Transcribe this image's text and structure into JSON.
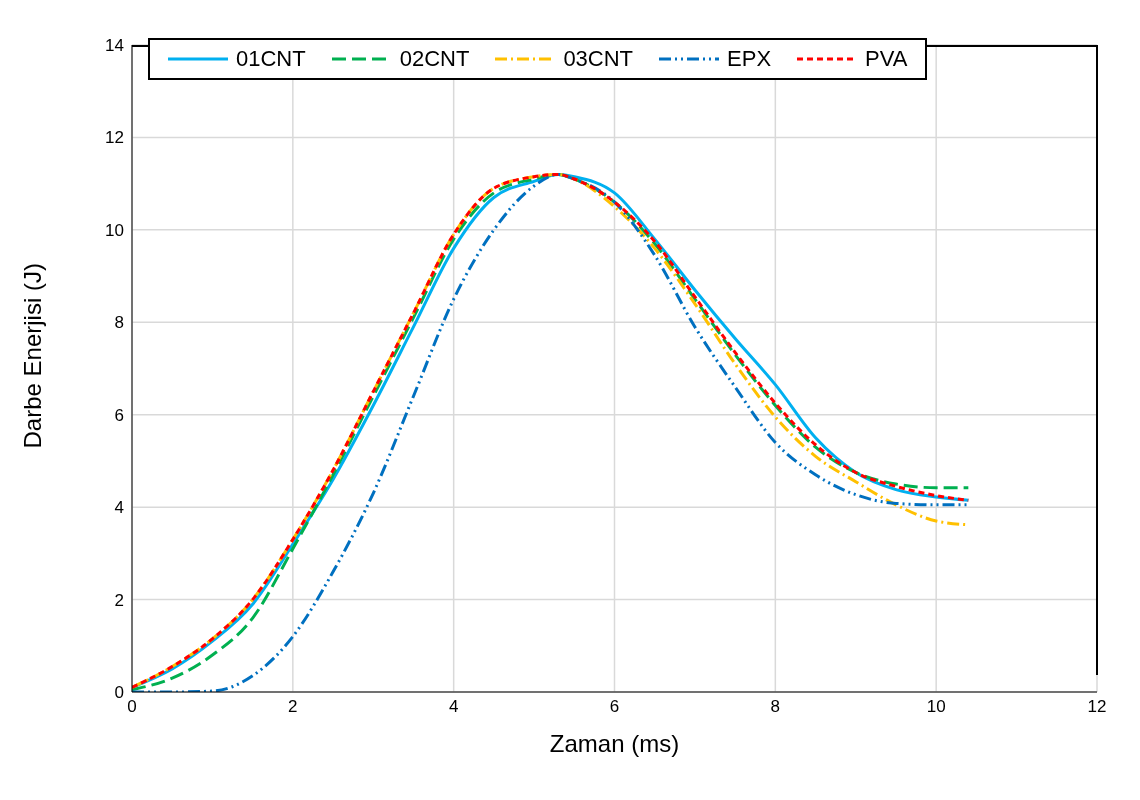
{
  "chart_data": {
    "type": "line",
    "xlabel": "Zaman (ms)",
    "ylabel": "Darbe Enerjisi  (J)",
    "x": [
      0,
      0.5,
      1,
      1.5,
      2,
      2.5,
      3,
      3.5,
      4,
      4.5,
      5,
      5.3,
      5.5,
      6,
      6.5,
      7,
      7.5,
      8,
      8.5,
      9,
      9.5,
      10,
      10.4
    ],
    "series": [
      {
        "name": "01CNT",
        "color": "#00b0f0",
        "line_style": "solid",
        "values": [
          0.1,
          0.5,
          1.1,
          1.9,
          3.2,
          4.6,
          6.2,
          7.9,
          9.6,
          10.7,
          11.05,
          11.2,
          11.15,
          10.8,
          9.8,
          8.7,
          7.65,
          6.65,
          5.5,
          4.75,
          4.38,
          4.22,
          4.15
        ]
      },
      {
        "name": "02CNT",
        "color": "#00b050",
        "line_style": "dashed",
        "values": [
          0.05,
          0.3,
          0.8,
          1.6,
          3.1,
          4.7,
          6.4,
          8.1,
          9.8,
          10.8,
          11.1,
          11.2,
          11.1,
          10.6,
          9.7,
          8.5,
          7.3,
          6.2,
          5.3,
          4.75,
          4.5,
          4.42,
          4.42
        ]
      },
      {
        "name": "03CNT",
        "color": "#ffc000",
        "line_style": "dashed",
        "values": [
          0.1,
          0.55,
          1.15,
          2.0,
          3.3,
          4.8,
          6.5,
          8.2,
          9.9,
          10.9,
          11.15,
          11.2,
          11.1,
          10.5,
          9.6,
          8.4,
          7.1,
          5.95,
          5.1,
          4.55,
          4.05,
          3.7,
          3.62
        ]
      },
      {
        "name": "EPX",
        "color": "#0070c0",
        "line_style": "dashed",
        "values": [
          0,
          0,
          0.02,
          0.35,
          1.2,
          2.6,
          4.3,
          6.4,
          8.5,
          10.0,
          10.95,
          11.2,
          11.1,
          10.6,
          9.45,
          7.9,
          6.6,
          5.4,
          4.7,
          4.27,
          4.08,
          4.05,
          4.05
        ]
      },
      {
        "name": "PVA",
        "color": "#ff0000",
        "line_style": "dashed",
        "values": [
          0.1,
          0.55,
          1.15,
          2.0,
          3.3,
          4.8,
          6.5,
          8.2,
          9.9,
          10.9,
          11.15,
          11.2,
          11.1,
          10.6,
          9.75,
          8.55,
          7.35,
          6.25,
          5.35,
          4.75,
          4.45,
          4.25,
          4.15
        ]
      }
    ],
    "xlim": [
      0,
      12
    ],
    "xticks": [
      0,
      2,
      4,
      6,
      8,
      10,
      12
    ],
    "ylim": [
      0,
      14
    ],
    "yticks": [
      0,
      2,
      4,
      6,
      8,
      10,
      12,
      14
    ],
    "grid": true,
    "legend": "top",
    "marker": "none"
  }
}
